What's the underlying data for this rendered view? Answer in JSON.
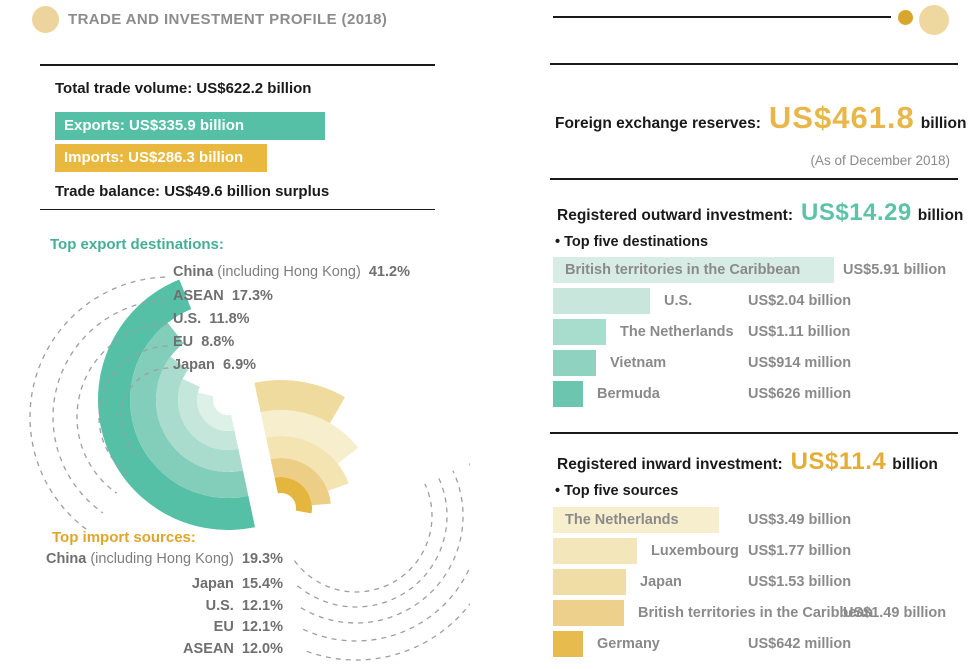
{
  "header": {
    "title": "TRADE AND INVESTMENT PROFILE (2018)",
    "accent_color": "#edd49c"
  },
  "palette": {
    "teal": "#56c0a7",
    "gold": "#e8b93e",
    "gray_text": "#8a8a8a",
    "dash_gray": "#9aa0a0",
    "rule_black": "#1a1a1a"
  },
  "reserves": {
    "label": "Foreign exchange reserves:",
    "value": "US$461.8",
    "unit": "billion",
    "asof": "(As of December 2018)",
    "value_color": "#e9b64a"
  },
  "outward": {
    "label": "Registered outward investment:",
    "value": "US$14.29",
    "unit": "billion",
    "subheading": "• Top five destinations",
    "value_color": "#5cc2a8"
  },
  "inward": {
    "label": "Registered inward investment:",
    "value": "US$11.4",
    "unit": "billion",
    "subheading": "• Top five sources",
    "value_color": "#e4ae35"
  },
  "chart_data": [
    {
      "id": "trade-volume",
      "type": "bar",
      "orientation": "horizontal",
      "title": "Total trade volume: US$622.2 billion",
      "note": "Trade balance: US$49.6 billion surplus",
      "categories": [
        "Exports",
        "Imports"
      ],
      "values": [
        335.9,
        286.3
      ],
      "unit": "US$ billion",
      "bar_labels": [
        "Exports: US$335.9 billion",
        "Imports: US$286.3 billion"
      ],
      "colors": [
        "#56c0a7",
        "#e8b93e"
      ]
    },
    {
      "id": "export-destinations",
      "type": "pie",
      "variant": "radial-fan",
      "title": "Top export destinations:",
      "title_color": "#45ae96",
      "categories": [
        "China",
        "ASEAN",
        "U.S.",
        "EU",
        "Japan"
      ],
      "qualifiers": [
        "(including Hong Kong)",
        "",
        "",
        "",
        ""
      ],
      "values": [
        41.2,
        17.3,
        11.8,
        8.8,
        6.9
      ],
      "unit": "%",
      "display": [
        "41.2%",
        "17.3%",
        "11.8%",
        "8.8%",
        "6.9%"
      ],
      "colors": [
        "#56c0a7",
        "#83ceba",
        "#a9dccd",
        "#c5e7db",
        "#def1e8"
      ]
    },
    {
      "id": "import-sources",
      "type": "pie",
      "variant": "radial-fan",
      "title": "Top import sources:",
      "title_color": "#dfa62e",
      "categories": [
        "China",
        "Japan",
        "U.S.",
        "EU",
        "ASEAN"
      ],
      "qualifiers": [
        "(including Hong Kong)",
        "",
        "",
        "",
        ""
      ],
      "values": [
        19.3,
        15.4,
        12.1,
        12.1,
        12.0
      ],
      "unit": "%",
      "display": [
        "19.3%",
        "15.4%",
        "12.1%",
        "12.1%",
        "12.0%"
      ],
      "colors": [
        "#e5b63e",
        "#edce87",
        "#f3e4b2",
        "#f7eecd",
        "#efdb9e"
      ]
    },
    {
      "id": "outward-investment",
      "type": "bar",
      "orientation": "horizontal",
      "title": "Registered outward investment: US$14.29 billion",
      "categories": [
        "British territories in the Caribbean",
        "U.S.",
        "The Netherlands",
        "Vietnam",
        "Bermuda"
      ],
      "values": [
        5.91,
        2.04,
        1.11,
        0.914,
        0.626
      ],
      "unit": "US$ billion",
      "value_labels": [
        "US$5.91 billion",
        "US$2.04 billion",
        "US$1.11 billion",
        "US$914 million",
        "US$626 million"
      ],
      "colors": [
        "#d7ece4",
        "#c9e6dc",
        "#a8dccc",
        "#8ed2bf",
        "#6cc5ae"
      ],
      "label_inside": [
        true,
        false,
        false,
        false,
        false
      ],
      "value_far": [
        true,
        false,
        false,
        false,
        false
      ]
    },
    {
      "id": "inward-investment",
      "type": "bar",
      "orientation": "horizontal",
      "title": "Registered inward investment: US$11.4 billion",
      "categories": [
        "The Netherlands",
        "Luxembourg",
        "Japan",
        "British territories in the Caribbean",
        "Germany"
      ],
      "values": [
        3.49,
        1.77,
        1.53,
        1.49,
        0.642
      ],
      "unit": "US$ billion",
      "value_labels": [
        "US$3.49 billion",
        "US$1.77 billion",
        "US$1.53 billion",
        "US$1.49 billion",
        "US$642 million"
      ],
      "colors": [
        "#f7eecd",
        "#f3e6bb",
        "#f0dda5",
        "#edd08b",
        "#e7bb4e"
      ],
      "label_inside": [
        true,
        false,
        false,
        false,
        false
      ],
      "value_far": [
        false,
        false,
        false,
        true,
        false
      ]
    }
  ]
}
